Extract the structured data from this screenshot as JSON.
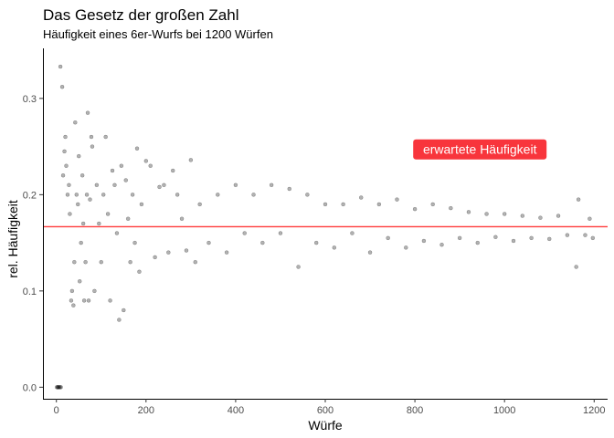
{
  "chart_data": {
    "type": "scatter",
    "title": "Das Gesetz der großen Zahl",
    "subtitle": "Häufigkeit eines 6er-Wurfs bei 1200 Würfen",
    "xlabel": "Würfe",
    "ylabel": "rel. Häufigkeit",
    "xlim": [
      -30,
      1230
    ],
    "ylim": [
      -0.012,
      0.352
    ],
    "x_ticks": [
      0,
      200,
      400,
      600,
      800,
      1000,
      1200
    ],
    "x_tick_labels": [
      "0",
      "200",
      "400",
      "600",
      "800",
      "1000",
      "1200"
    ],
    "y_ticks": [
      0.0,
      0.1,
      0.2,
      0.3
    ],
    "y_tick_labels": [
      "0.0",
      "0.1",
      "0.2",
      "0.3"
    ],
    "grid": false,
    "n_points": 1200,
    "point_color": "#000000",
    "point_opacity": 0.3,
    "reference_line": {
      "y": 0.1667,
      "color": "#ff3b3b"
    },
    "annotation": {
      "text": "erwartete Häufigkeit",
      "x": 945,
      "y": 0.247,
      "fill": "#f8353c",
      "text_color": "#ffffff"
    },
    "points": [
      [
        1,
        0.0
      ],
      [
        3,
        0.0
      ],
      [
        4,
        0.0
      ],
      [
        6,
        0.0
      ],
      [
        8,
        0.0
      ],
      [
        10,
        0.0
      ],
      [
        9,
        0.333
      ],
      [
        13,
        0.312
      ],
      [
        15,
        0.22
      ],
      [
        18,
        0.245
      ],
      [
        20,
        0.26
      ],
      [
        22,
        0.23
      ],
      [
        25,
        0.2
      ],
      [
        28,
        0.21
      ],
      [
        30,
        0.18
      ],
      [
        33,
        0.09
      ],
      [
        35,
        0.1
      ],
      [
        38,
        0.085
      ],
      [
        40,
        0.13
      ],
      [
        42,
        0.275
      ],
      [
        45,
        0.2
      ],
      [
        48,
        0.19
      ],
      [
        50,
        0.24
      ],
      [
        52,
        0.11
      ],
      [
        55,
        0.15
      ],
      [
        58,
        0.22
      ],
      [
        60,
        0.17
      ],
      [
        62,
        0.09
      ],
      [
        65,
        0.13
      ],
      [
        68,
        0.2
      ],
      [
        70,
        0.285
      ],
      [
        72,
        0.09
      ],
      [
        75,
        0.195
      ],
      [
        78,
        0.26
      ],
      [
        80,
        0.25
      ],
      [
        85,
        0.1
      ],
      [
        90,
        0.21
      ],
      [
        95,
        0.17
      ],
      [
        100,
        0.13
      ],
      [
        105,
        0.2
      ],
      [
        110,
        0.26
      ],
      [
        115,
        0.18
      ],
      [
        120,
        0.09
      ],
      [
        125,
        0.225
      ],
      [
        130,
        0.21
      ],
      [
        135,
        0.16
      ],
      [
        140,
        0.07
      ],
      [
        145,
        0.23
      ],
      [
        150,
        0.08
      ],
      [
        155,
        0.215
      ],
      [
        160,
        0.175
      ],
      [
        165,
        0.13
      ],
      [
        170,
        0.2
      ],
      [
        175,
        0.15
      ],
      [
        180,
        0.248
      ],
      [
        185,
        0.12
      ],
      [
        190,
        0.19
      ],
      [
        200,
        0.235
      ],
      [
        210,
        0.23
      ],
      [
        220,
        0.135
      ],
      [
        230,
        0.208
      ],
      [
        240,
        0.21
      ],
      [
        250,
        0.14
      ],
      [
        260,
        0.225
      ],
      [
        270,
        0.2
      ],
      [
        280,
        0.175
      ],
      [
        290,
        0.142
      ],
      [
        300,
        0.236
      ],
      [
        310,
        0.13
      ],
      [
        320,
        0.19
      ],
      [
        340,
        0.15
      ],
      [
        360,
        0.2
      ],
      [
        380,
        0.14
      ],
      [
        400,
        0.21
      ],
      [
        420,
        0.16
      ],
      [
        440,
        0.2
      ],
      [
        460,
        0.15
      ],
      [
        480,
        0.21
      ],
      [
        500,
        0.16
      ],
      [
        520,
        0.206
      ],
      [
        540,
        0.125
      ],
      [
        560,
        0.2
      ],
      [
        580,
        0.15
      ],
      [
        600,
        0.19
      ],
      [
        620,
        0.145
      ],
      [
        640,
        0.19
      ],
      [
        660,
        0.16
      ],
      [
        680,
        0.197
      ],
      [
        700,
        0.14
      ],
      [
        720,
        0.19
      ],
      [
        740,
        0.155
      ],
      [
        760,
        0.195
      ],
      [
        780,
        0.145
      ],
      [
        800,
        0.185
      ],
      [
        820,
        0.152
      ],
      [
        840,
        0.19
      ],
      [
        860,
        0.148
      ],
      [
        880,
        0.186
      ],
      [
        900,
        0.155
      ],
      [
        920,
        0.182
      ],
      [
        940,
        0.15
      ],
      [
        960,
        0.18
      ],
      [
        980,
        0.156
      ],
      [
        1000,
        0.18
      ],
      [
        1020,
        0.152
      ],
      [
        1040,
        0.178
      ],
      [
        1060,
        0.155
      ],
      [
        1080,
        0.176
      ],
      [
        1100,
        0.154
      ],
      [
        1120,
        0.178
      ],
      [
        1140,
        0.158
      ],
      [
        1160,
        0.125
      ],
      [
        1165,
        0.195
      ],
      [
        1180,
        0.158
      ],
      [
        1190,
        0.175
      ],
      [
        1197,
        0.155
      ]
    ]
  }
}
